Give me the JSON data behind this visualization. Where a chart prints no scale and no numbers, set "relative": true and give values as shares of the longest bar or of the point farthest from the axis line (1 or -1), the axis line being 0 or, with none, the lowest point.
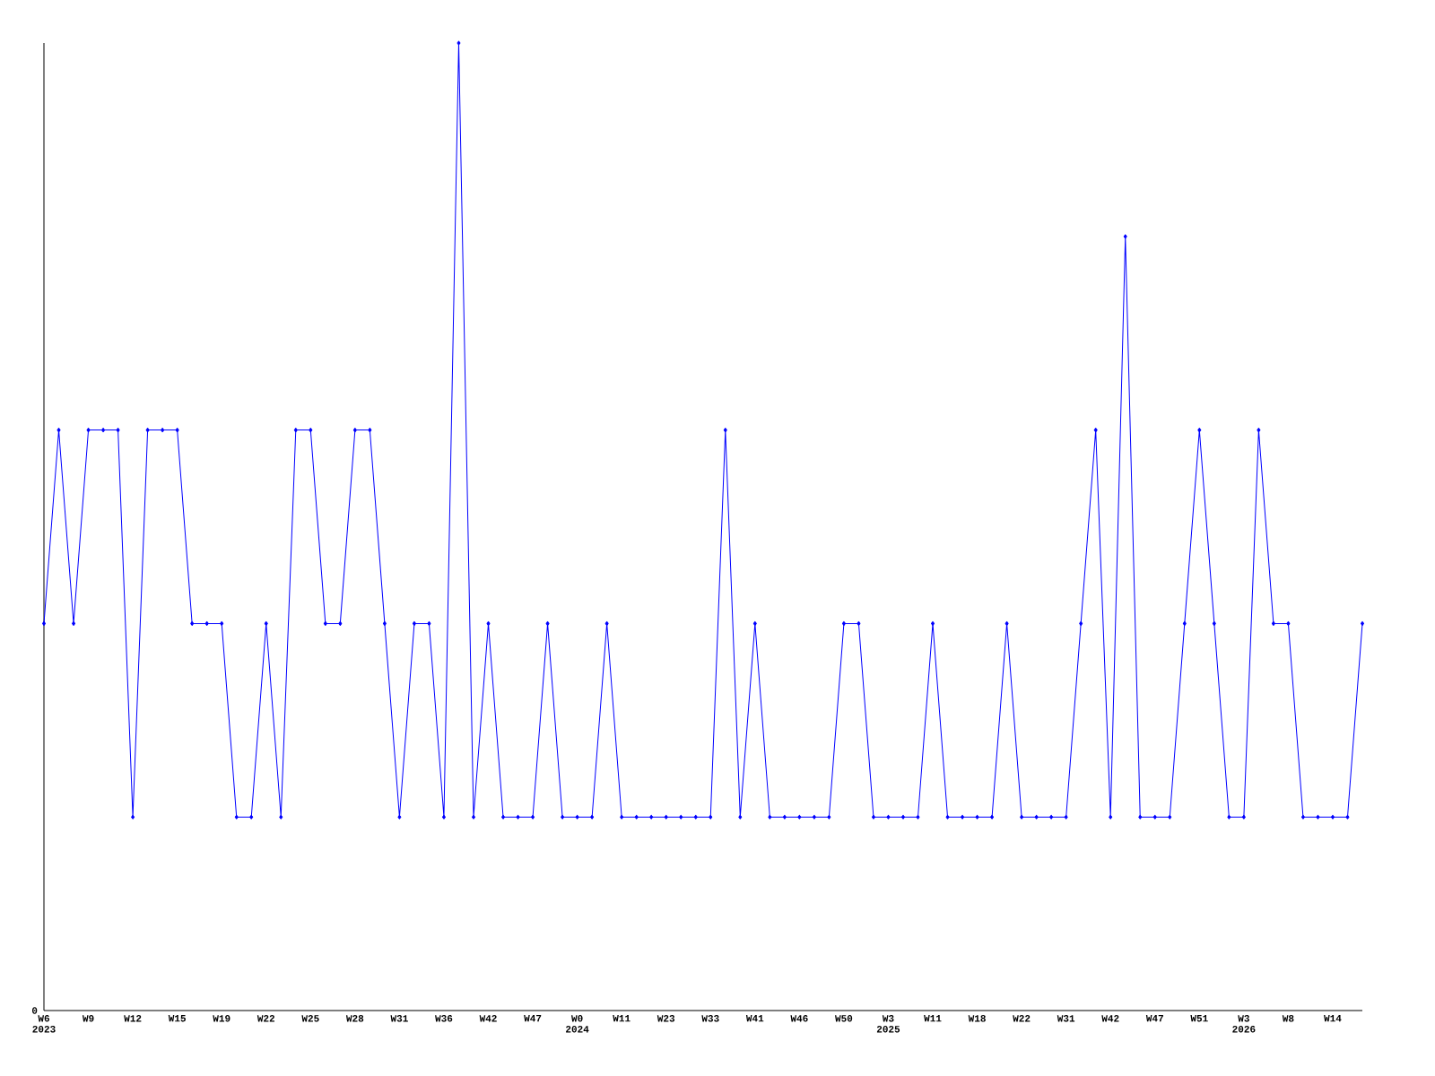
{
  "chart_data": {
    "type": "line",
    "relative": true,
    "color": "#0000ff",
    "marker": "diamond",
    "categories": [
      "W6 2023",
      null,
      null,
      "W9",
      null,
      null,
      "W12",
      null,
      null,
      "W15",
      null,
      null,
      "W19",
      null,
      null,
      "W22",
      null,
      null,
      "W25",
      null,
      null,
      "W28",
      null,
      null,
      "W31",
      null,
      null,
      "W36",
      null,
      null,
      "W42",
      null,
      null,
      "W47",
      null,
      null,
      "W0 2024",
      null,
      null,
      "W11",
      null,
      null,
      "W23",
      null,
      null,
      "W33",
      null,
      null,
      "W41",
      null,
      null,
      "W46",
      null,
      null,
      "W50",
      null,
      null,
      "W3 2025",
      null,
      null,
      "W11",
      null,
      null,
      "W18",
      null,
      null,
      "W22",
      null,
      null,
      "W31",
      null,
      null,
      "W42",
      null,
      null,
      "W47",
      null,
      null,
      "W51",
      null,
      null,
      "W3 2026",
      null,
      null,
      "W8",
      null,
      null,
      "W14",
      null,
      null
    ],
    "values": [
      0.4,
      0.6,
      0.4,
      0.6,
      0.6,
      0.6,
      0.2,
      0.6,
      0.6,
      0.6,
      0.4,
      0.4,
      0.4,
      0.2,
      0.2,
      0.4,
      0.2,
      0.6,
      0.6,
      0.4,
      0.4,
      0.6,
      0.6,
      0.4,
      0.2,
      0.4,
      0.4,
      0.2,
      1,
      0.2,
      0.4,
      0.2,
      0.2,
      0.2,
      0.4,
      0.2,
      0.2,
      0.2,
      0.4,
      0.2,
      0.2,
      0.2,
      0.2,
      0.2,
      0.2,
      0.2,
      0.6,
      0.2,
      0.4,
      0.2,
      0.2,
      0.2,
      0.2,
      0.2,
      0.4,
      0.4,
      0.2,
      0.2,
      0.2,
      0.2,
      0.4,
      0.2,
      0.2,
      0.2,
      0.2,
      0.4,
      0.2,
      0.2,
      0.2,
      0.2,
      0.4,
      0.6,
      0.2,
      0.8,
      0.2,
      0.2,
      0.2,
      0.4,
      0.6,
      0.4,
      0.2,
      0.2,
      0.6,
      0.4,
      0.4,
      0.2,
      0.2,
      0.2,
      0.2,
      0.4
    ],
    "annotations": [
      "0"
    ]
  }
}
